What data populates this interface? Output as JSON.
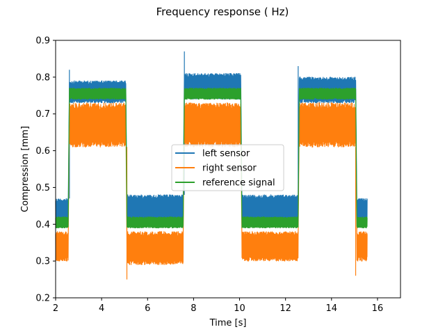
{
  "chart_data": {
    "type": "line",
    "title": "Frequency response ( Hz)",
    "xlabel": "Time [s]",
    "ylabel": "Compression [mm]",
    "xlim": [
      2,
      17
    ],
    "ylim": [
      0.2,
      0.9
    ],
    "xticks": [
      2,
      4,
      6,
      8,
      10,
      12,
      14,
      16
    ],
    "yticks": [
      0.2,
      0.3,
      0.4,
      0.5,
      0.6,
      0.7,
      0.8,
      0.9
    ],
    "xtick_labels": [
      "2",
      "4",
      "6",
      "8",
      "10",
      "12",
      "14",
      "16"
    ],
    "ytick_labels": [
      "0.2",
      "0.3",
      "0.4",
      "0.5",
      "0.6",
      "0.7",
      "0.8",
      "0.9"
    ],
    "grid": false,
    "legend_position": "center",
    "series": [
      {
        "name": "left sensor",
        "color": "#1f77b4",
        "segments": [
          {
            "x0": 2.0,
            "x1": 2.55,
            "low": 0.4,
            "high": 0.47
          },
          {
            "x0": 2.6,
            "x1": 5.05,
            "low": 0.73,
            "high": 0.79
          },
          {
            "x0": 5.1,
            "x1": 7.55,
            "low": 0.41,
            "high": 0.48
          },
          {
            "x0": 7.6,
            "x1": 10.05,
            "low": 0.74,
            "high": 0.81
          },
          {
            "x0": 10.1,
            "x1": 12.55,
            "low": 0.41,
            "high": 0.48
          },
          {
            "x0": 12.6,
            "x1": 15.05,
            "low": 0.73,
            "high": 0.8
          },
          {
            "x0": 15.1,
            "x1": 15.55,
            "low": 0.41,
            "high": 0.47
          }
        ],
        "peaks": [
          [
            2.6,
            0.82
          ],
          [
            7.6,
            0.87
          ],
          [
            12.55,
            0.83
          ]
        ]
      },
      {
        "name": "right sensor",
        "color": "#ff7f0e",
        "segments": [
          {
            "x0": 2.0,
            "x1": 2.55,
            "low": 0.3,
            "high": 0.38
          },
          {
            "x0": 2.6,
            "x1": 5.05,
            "low": 0.61,
            "high": 0.73
          },
          {
            "x0": 5.1,
            "x1": 7.55,
            "low": 0.29,
            "high": 0.38
          },
          {
            "x0": 7.6,
            "x1": 10.05,
            "low": 0.61,
            "high": 0.73
          },
          {
            "x0": 10.1,
            "x1": 12.55,
            "low": 0.3,
            "high": 0.38
          },
          {
            "x0": 12.6,
            "x1": 15.05,
            "low": 0.61,
            "high": 0.73
          },
          {
            "x0": 15.1,
            "x1": 15.55,
            "low": 0.3,
            "high": 0.38
          }
        ],
        "peaks": [
          [
            5.1,
            0.25
          ],
          [
            15.05,
            0.26
          ]
        ]
      },
      {
        "name": "reference signal",
        "color": "#2ca02c",
        "segments": [
          {
            "x0": 2.0,
            "x1": 2.55,
            "low": 0.39,
            "high": 0.42
          },
          {
            "x0": 2.6,
            "x1": 5.05,
            "low": 0.74,
            "high": 0.77
          },
          {
            "x0": 5.1,
            "x1": 7.55,
            "low": 0.39,
            "high": 0.42
          },
          {
            "x0": 7.6,
            "x1": 10.05,
            "low": 0.74,
            "high": 0.77
          },
          {
            "x0": 10.1,
            "x1": 12.55,
            "low": 0.39,
            "high": 0.42
          },
          {
            "x0": 12.6,
            "x1": 15.05,
            "low": 0.74,
            "high": 0.77
          },
          {
            "x0": 15.1,
            "x1": 15.55,
            "low": 0.39,
            "high": 0.42
          }
        ],
        "peaks": []
      }
    ]
  }
}
